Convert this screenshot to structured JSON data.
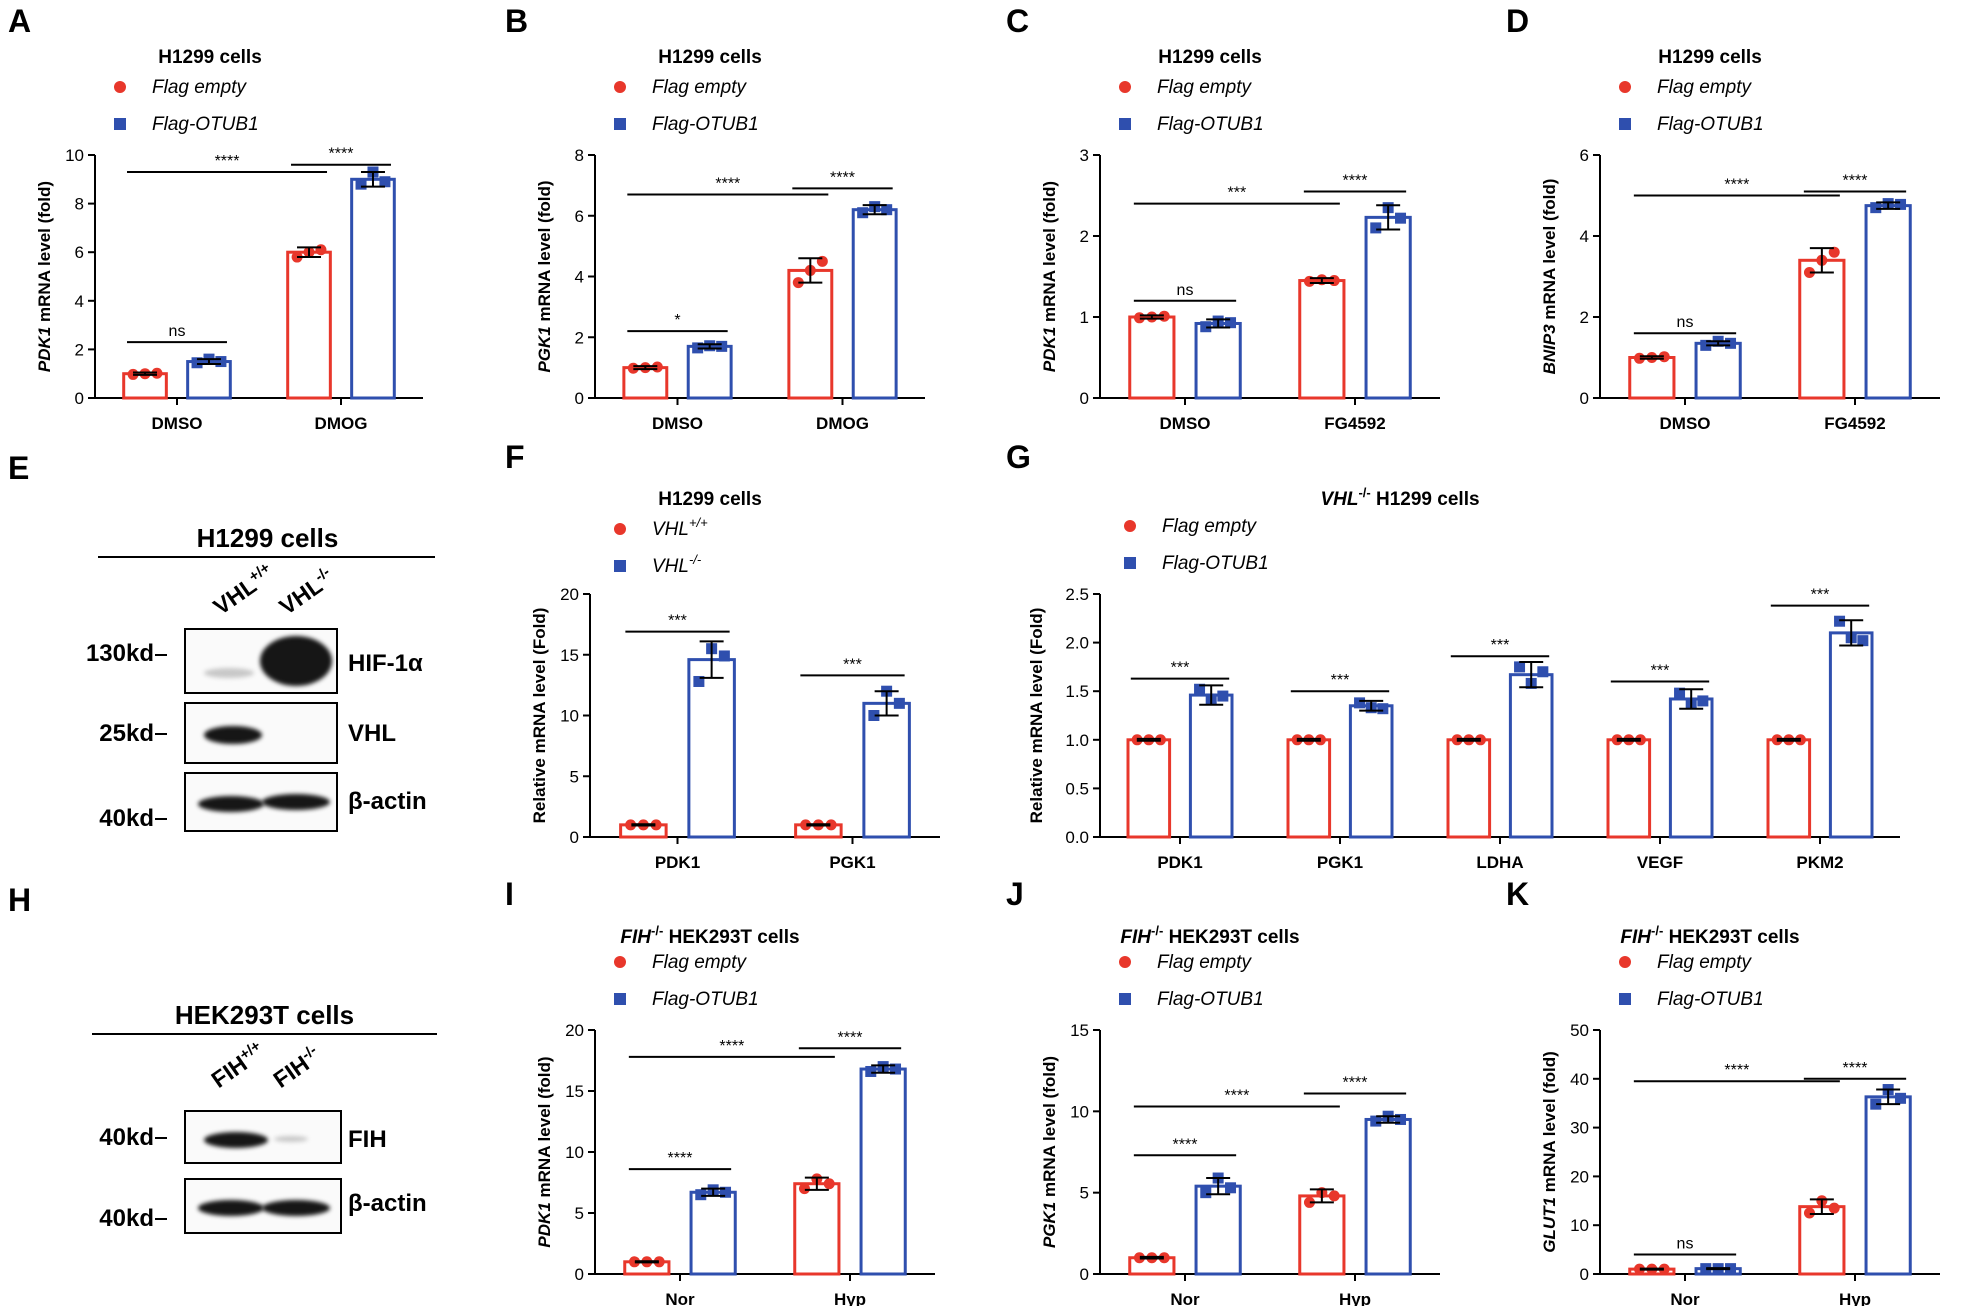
{
  "colors": {
    "red": "#e8372b",
    "blue": "#2f4fae",
    "black": "#000000"
  },
  "chart_data": [
    {
      "letter": "A",
      "type": "bar",
      "title": "H1299 cells",
      "ylabel_italic": "PDK1",
      "ylabel_rest": " mRNA level (fold)",
      "ylim": [
        0,
        10
      ],
      "yticks": [
        "0",
        "2",
        "4",
        "6",
        "8",
        "10"
      ],
      "categories": [
        "DMSO",
        "DMOG"
      ],
      "series": [
        {
          "name": "Flag empty",
          "values": [
            1.0,
            6.0
          ],
          "errors": [
            0.05,
            0.2
          ],
          "points": [
            [
              0.97,
              1.0,
              1.02
            ],
            [
              5.8,
              6.0,
              6.1
            ]
          ]
        },
        {
          "name": "Flag-OTUB1",
          "values": [
            1.5,
            9.0
          ],
          "errors": [
            0.1,
            0.3
          ],
          "points": [
            [
              1.45,
              1.6,
              1.5
            ],
            [
              8.8,
              9.3,
              8.9
            ]
          ]
        }
      ],
      "brackets": [
        {
          "label": "ns",
          "from": [
            0,
            0
          ],
          "to": [
            0,
            1
          ],
          "y": 2.3
        },
        {
          "label": "****",
          "from": [
            1,
            0
          ],
          "to": [
            1,
            1
          ],
          "y": 9.6
        },
        {
          "label": "****",
          "from": [
            0,
            0
          ],
          "to": [
            1,
            0
          ],
          "y": 9.3
        }
      ]
    },
    {
      "letter": "B",
      "type": "bar",
      "title": "H1299 cells",
      "ylabel_italic": "PGK1",
      "ylabel_rest": " mRNA level (fold)",
      "ylim": [
        0,
        8
      ],
      "yticks": [
        "0",
        "2",
        "4",
        "6",
        "8"
      ],
      "categories": [
        "DMSO",
        "DMOG"
      ],
      "series": [
        {
          "name": "Flag empty",
          "values": [
            1.0,
            4.2
          ],
          "errors": [
            0.05,
            0.4
          ],
          "points": [
            [
              0.98,
              1.0,
              1.02
            ],
            [
              3.8,
              4.2,
              4.5
            ]
          ]
        },
        {
          "name": "Flag-OTUB1",
          "values": [
            1.7,
            6.2
          ],
          "errors": [
            0.07,
            0.15
          ],
          "points": [
            [
              1.65,
              1.72,
              1.7
            ],
            [
              6.1,
              6.3,
              6.2
            ]
          ]
        }
      ],
      "brackets": [
        {
          "label": "*",
          "from": [
            0,
            0
          ],
          "to": [
            0,
            1
          ],
          "y": 2.2
        },
        {
          "label": "****",
          "from": [
            1,
            0
          ],
          "to": [
            1,
            1
          ],
          "y": 6.9
        },
        {
          "label": "****",
          "from": [
            0,
            0
          ],
          "to": [
            1,
            0
          ],
          "y": 6.7
        }
      ]
    },
    {
      "letter": "C",
      "type": "bar",
      "title": "H1299 cells",
      "ylabel_italic": "PDK1",
      "ylabel_rest": " mRNA level (fold)",
      "ylim": [
        0,
        3
      ],
      "yticks": [
        "0",
        "1",
        "2",
        "3"
      ],
      "categories": [
        "DMSO",
        "FG4592"
      ],
      "series": [
        {
          "name": "Flag empty",
          "values": [
            1.0,
            1.45
          ],
          "errors": [
            0.02,
            0.03
          ],
          "points": [
            [
              0.99,
              1.0,
              1.01
            ],
            [
              1.44,
              1.46,
              1.45
            ]
          ]
        },
        {
          "name": "Flag-OTUB1",
          "values": [
            0.92,
            2.23
          ],
          "errors": [
            0.05,
            0.15
          ],
          "points": [
            [
              0.88,
              0.95,
              0.93
            ],
            [
              2.1,
              2.35,
              2.22
            ]
          ]
        }
      ],
      "brackets": [
        {
          "label": "ns",
          "from": [
            0,
            0
          ],
          "to": [
            0,
            1
          ],
          "y": 1.2
        },
        {
          "label": "****",
          "from": [
            1,
            0
          ],
          "to": [
            1,
            1
          ],
          "y": 2.55
        },
        {
          "label": "***",
          "from": [
            0,
            0
          ],
          "to": [
            1,
            0
          ],
          "y": 2.4
        }
      ]
    },
    {
      "letter": "D",
      "type": "bar",
      "title": "H1299 cells",
      "ylabel_italic": "BNIP3",
      "ylabel_rest": " mRNA level (fold)",
      "ylim": [
        0,
        6
      ],
      "yticks": [
        "0",
        "2",
        "4",
        "6"
      ],
      "categories": [
        "DMSO",
        "FG4592"
      ],
      "series": [
        {
          "name": "Flag empty",
          "values": [
            1.0,
            3.4
          ],
          "errors": [
            0.03,
            0.3
          ],
          "points": [
            [
              0.98,
              1.0,
              1.02
            ],
            [
              3.1,
              3.4,
              3.6
            ]
          ]
        },
        {
          "name": "Flag-OTUB1",
          "values": [
            1.35,
            4.75
          ],
          "errors": [
            0.05,
            0.08
          ],
          "points": [
            [
              1.3,
              1.4,
              1.35
            ],
            [
              4.7,
              4.8,
              4.78
            ]
          ]
        }
      ],
      "brackets": [
        {
          "label": "ns",
          "from": [
            0,
            0
          ],
          "to": [
            0,
            1
          ],
          "y": 1.6
        },
        {
          "label": "****",
          "from": [
            1,
            0
          ],
          "to": [
            1,
            1
          ],
          "y": 5.1
        },
        {
          "label": "****",
          "from": [
            0,
            0
          ],
          "to": [
            1,
            0
          ],
          "y": 5.0
        }
      ]
    },
    {
      "letter": "F",
      "type": "bar",
      "title": "H1299 cells",
      "ylabel": "Relative mRNA level (Fold)",
      "ylim": [
        0,
        20
      ],
      "yticks": [
        "0",
        "5",
        "10",
        "15",
        "20"
      ],
      "categories": [
        "PDK1",
        "PGK1"
      ],
      "series": [
        {
          "name": "VHL",
          "sup": "+/+",
          "values": [
            1.0,
            1.0
          ],
          "errors": [
            0.05,
            0.05
          ],
          "points": [
            [
              1,
              1,
              1
            ],
            [
              1,
              1,
              1
            ]
          ]
        },
        {
          "name": "VHL",
          "sup": "-/-",
          "values": [
            14.6,
            11.0
          ],
          "errors": [
            1.5,
            1.0
          ],
          "points": [
            [
              12.8,
              15.5,
              14.9
            ],
            [
              10.0,
              12.0,
              11.0
            ]
          ]
        }
      ],
      "brackets": [
        {
          "label": "***",
          "from": [
            0,
            0
          ],
          "to": [
            0,
            1
          ],
          "y": 16.9
        },
        {
          "label": "***",
          "from": [
            1,
            0
          ],
          "to": [
            1,
            1
          ],
          "y": 13.3
        }
      ]
    },
    {
      "letter": "G",
      "type": "bar",
      "title_italic": "VHL",
      "title_sup": "-/-",
      "title_rest": " H1299 cells",
      "ylabel": "Relative mRNA level (Fold)",
      "ylim": [
        0,
        2.5
      ],
      "yticks": [
        "0.0",
        "0.5",
        "1.0",
        "1.5",
        "2.0",
        "2.5"
      ],
      "categories": [
        "PDK1",
        "PGK1",
        "LDHA",
        "VEGF",
        "PKM2"
      ],
      "series": [
        {
          "name": "Flag empty",
          "values": [
            1.0,
            1.0,
            1.0,
            1.0,
            1.0
          ],
          "errors": [
            0.01,
            0.01,
            0.01,
            0.01,
            0.01
          ],
          "points": [
            [
              1,
              1,
              1
            ],
            [
              1,
              1,
              1
            ],
            [
              1,
              1,
              1
            ],
            [
              1,
              1,
              1
            ],
            [
              1,
              1,
              1
            ]
          ]
        },
        {
          "name": "Flag-OTUB1",
          "values": [
            1.46,
            1.35,
            1.67,
            1.42,
            2.1
          ],
          "errors": [
            0.1,
            0.05,
            0.13,
            0.1,
            0.13
          ],
          "points": [
            [
              1.52,
              1.42,
              1.45
            ],
            [
              1.38,
              1.33,
              1.32
            ],
            [
              1.75,
              1.58,
              1.7
            ],
            [
              1.48,
              1.37,
              1.4
            ],
            [
              2.22,
              2.05,
              2.02
            ]
          ]
        }
      ],
      "brackets": [
        {
          "label": "***",
          "from": [
            0,
            0
          ],
          "to": [
            0,
            1
          ],
          "y": 1.63
        },
        {
          "label": "***",
          "from": [
            1,
            0
          ],
          "to": [
            1,
            1
          ],
          "y": 1.5
        },
        {
          "label": "***",
          "from": [
            2,
            0
          ],
          "to": [
            2,
            1
          ],
          "y": 1.86
        },
        {
          "label": "***",
          "from": [
            3,
            0
          ],
          "to": [
            3,
            1
          ],
          "y": 1.6
        },
        {
          "label": "***",
          "from": [
            4,
            0
          ],
          "to": [
            4,
            1
          ],
          "y": 2.38
        }
      ]
    },
    {
      "letter": "I",
      "type": "bar",
      "title_italic": "FIH",
      "title_sup": "-/-",
      "title_rest": " HEK293T cells",
      "ylabel_italic": "PDK1",
      "ylabel_rest": " mRNA level (fold)",
      "ylim": [
        0,
        20
      ],
      "yticks": [
        "0",
        "5",
        "10",
        "15",
        "20"
      ],
      "categories": [
        "Nor",
        "Hyp"
      ],
      "series": [
        {
          "name": "Flag empty",
          "values": [
            1.0,
            7.4
          ],
          "errors": [
            0.05,
            0.5
          ],
          "points": [
            [
              1,
              1,
              1
            ],
            [
              7.0,
              7.8,
              7.4
            ]
          ]
        },
        {
          "name": "Flag-OTUB1",
          "values": [
            6.7,
            16.8
          ],
          "errors": [
            0.3,
            0.3
          ],
          "points": [
            [
              6.5,
              6.9,
              6.7
            ],
            [
              16.6,
              17.0,
              16.8
            ]
          ]
        }
      ],
      "brackets": [
        {
          "label": "****",
          "from": [
            0,
            0
          ],
          "to": [
            0,
            1
          ],
          "y": 8.6
        },
        {
          "label": "****",
          "from": [
            1,
            0
          ],
          "to": [
            1,
            1
          ],
          "y": 18.5
        },
        {
          "label": "****",
          "from": [
            0,
            0
          ],
          "to": [
            1,
            0
          ],
          "y": 17.8
        }
      ]
    },
    {
      "letter": "J",
      "type": "bar",
      "title_italic": "FIH",
      "title_sup": "-/-",
      "title_rest": " HEK293T cells",
      "ylabel_italic": "PGK1",
      "ylabel_rest": " mRNA level (fold)",
      "ylim": [
        0,
        15
      ],
      "yticks": [
        "0",
        "5",
        "10",
        "15"
      ],
      "categories": [
        "Nor",
        "Hyp"
      ],
      "series": [
        {
          "name": "Flag empty",
          "values": [
            1.0,
            4.8
          ],
          "errors": [
            0.05,
            0.4
          ],
          "points": [
            [
              1,
              1,
              1
            ],
            [
              4.4,
              5.0,
              4.8
            ]
          ]
        },
        {
          "name": "Flag-OTUB1",
          "values": [
            5.4,
            9.5
          ],
          "errors": [
            0.5,
            0.2
          ],
          "points": [
            [
              5.0,
              5.9,
              5.3
            ],
            [
              9.4,
              9.7,
              9.5
            ]
          ]
        }
      ],
      "brackets": [
        {
          "label": "****",
          "from": [
            0,
            0
          ],
          "to": [
            0,
            1
          ],
          "y": 7.3
        },
        {
          "label": "****",
          "from": [
            1,
            0
          ],
          "to": [
            1,
            1
          ],
          "y": 11.1
        },
        {
          "label": "****",
          "from": [
            0,
            0
          ],
          "to": [
            1,
            0
          ],
          "y": 10.3
        }
      ]
    },
    {
      "letter": "K",
      "type": "bar",
      "title_italic": "FIH",
      "title_sup": "-/-",
      "title_rest": " HEK293T cells",
      "ylabel_italic": "GLUT1",
      "ylabel_rest": " mRNA level (fold)",
      "ylim": [
        0,
        50
      ],
      "yticks": [
        "0",
        "10",
        "20",
        "30",
        "40",
        "50"
      ],
      "categories": [
        "Nor",
        "Hyp"
      ],
      "series": [
        {
          "name": "Flag empty",
          "values": [
            1.0,
            13.8
          ],
          "errors": [
            0.1,
            1.5
          ],
          "points": [
            [
              1,
              1,
              1
            ],
            [
              12.5,
              15.0,
              13.5
            ]
          ]
        },
        {
          "name": "Flag-OTUB1",
          "values": [
            1.1,
            36.3
          ],
          "errors": [
            0.1,
            1.5
          ],
          "points": [
            [
              1.1,
              1.1,
              1.1
            ],
            [
              34.8,
              37.8,
              36.0
            ]
          ]
        }
      ],
      "brackets": [
        {
          "label": "ns",
          "from": [
            0,
            0
          ],
          "to": [
            0,
            1
          ],
          "y": 4.0
        },
        {
          "label": "****",
          "from": [
            1,
            0
          ],
          "to": [
            1,
            1
          ],
          "y": 40.0
        },
        {
          "label": "****",
          "from": [
            0,
            0
          ],
          "to": [
            1,
            0
          ],
          "y": 39.5
        }
      ]
    }
  ],
  "blots": {
    "E": {
      "letter": "E",
      "title": "H1299 cells",
      "lanes": [
        {
          "name": "VHL",
          "sup": "+/+"
        },
        {
          "name": "VHL",
          "sup": "-/-"
        }
      ],
      "rows": [
        {
          "kd": "130kd",
          "label": "HIF-1α"
        },
        {
          "kd": "25kd",
          "label": "VHL"
        },
        {
          "kd": "40kd",
          "label": "β-actin"
        }
      ]
    },
    "H": {
      "letter": "H",
      "title": "HEK293T cells",
      "lanes": [
        {
          "name": "FIH",
          "sup": "+/+"
        },
        {
          "name": "FIH",
          "sup": "-/-"
        }
      ],
      "rows": [
        {
          "kd": "40kd",
          "label": "FIH"
        },
        {
          "kd": "40kd",
          "label": "β-actin"
        }
      ]
    }
  }
}
